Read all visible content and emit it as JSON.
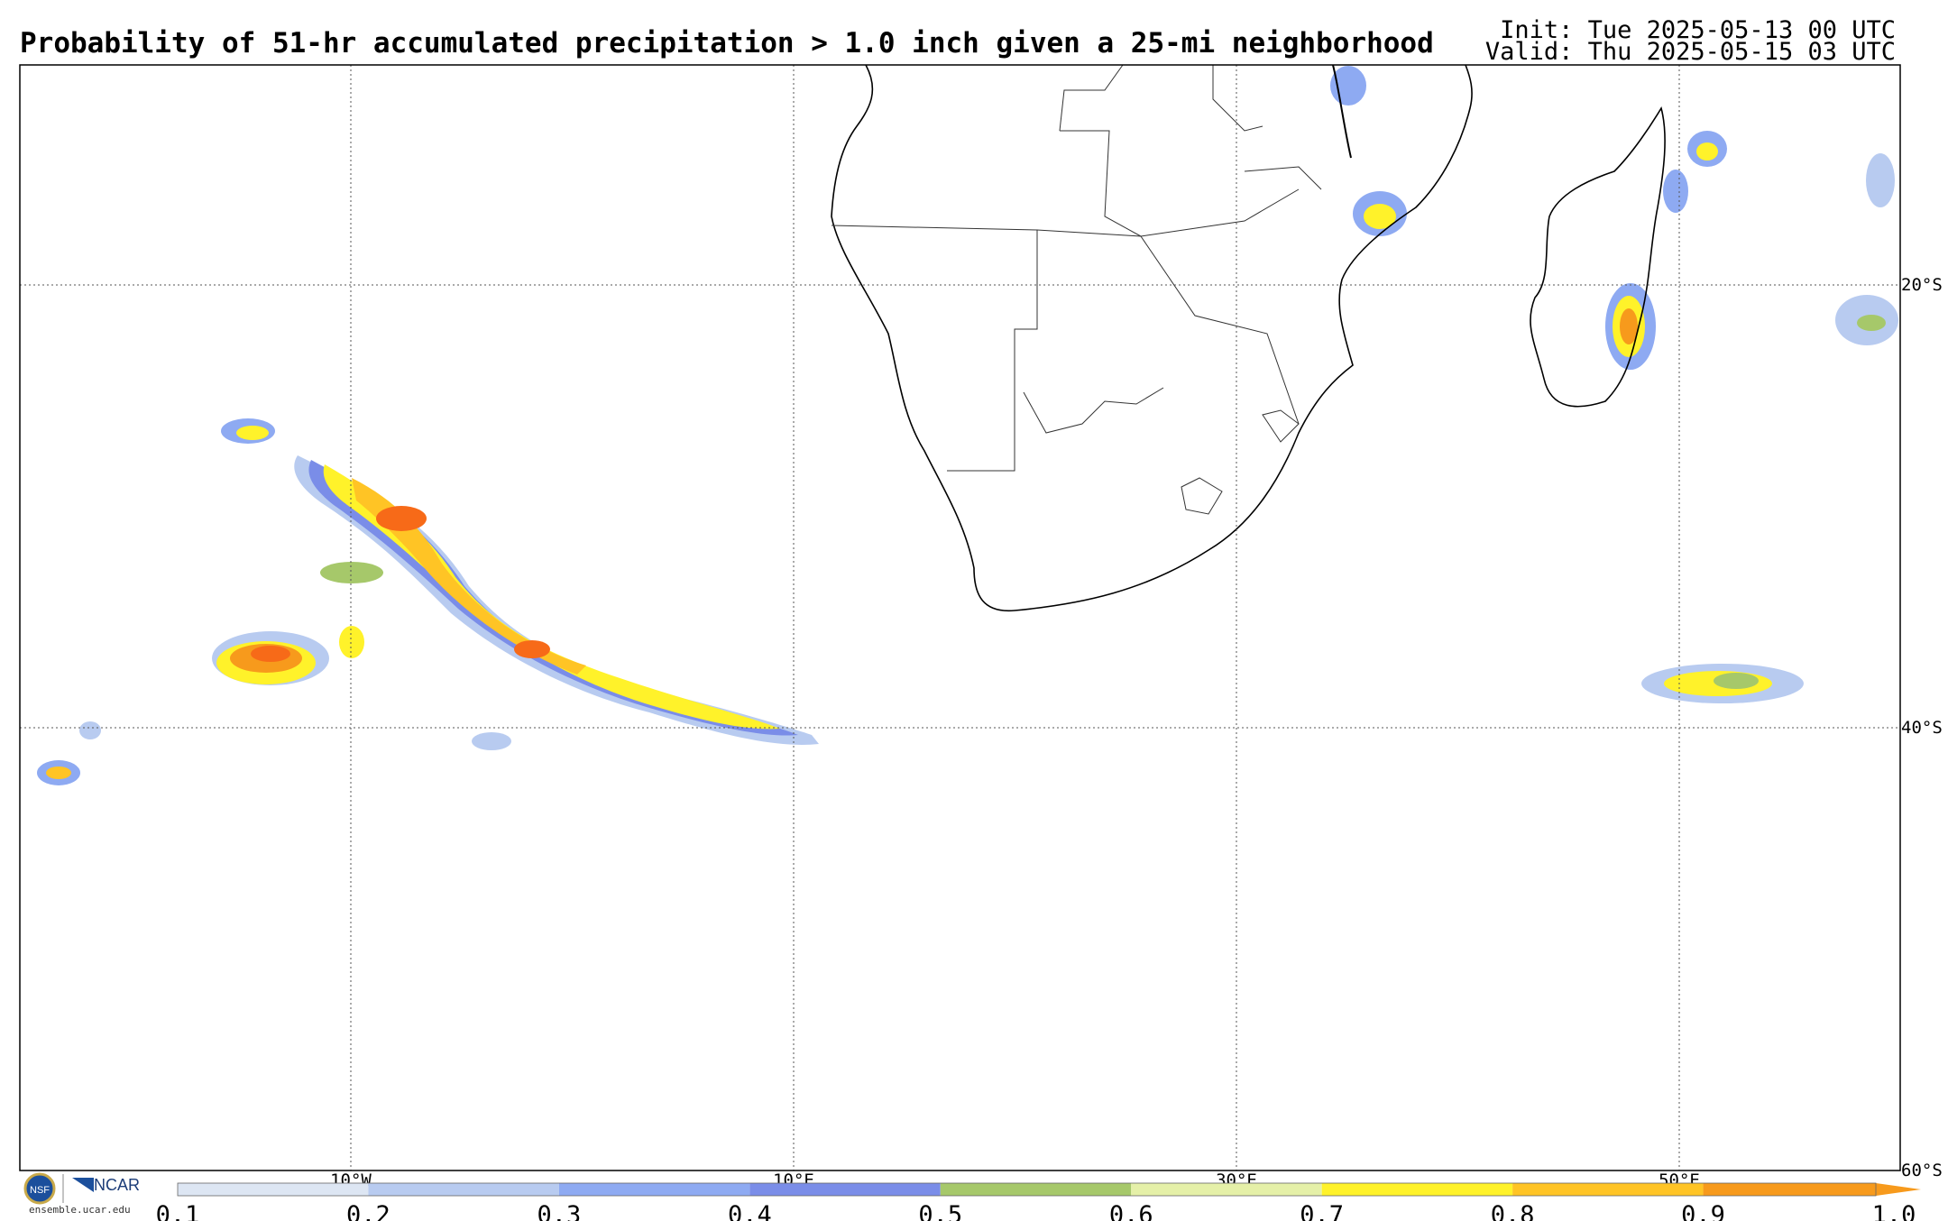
{
  "header": {
    "title": "Probability of 51-hr accumulated precipitation > 1.0 inch given a 25-mi neighborhood",
    "init": "Init: Tue 2025-05-13 00 UTC",
    "valid": "Valid: Thu 2025-05-15 03 UTC"
  },
  "map": {
    "lon_labels": [
      "10°W",
      "10°E",
      "30°E",
      "50°E"
    ],
    "lat_labels": [
      "20°S",
      "40°S",
      "60°S"
    ]
  },
  "colorbar": {
    "ticks": [
      "0.1",
      "0.2",
      "0.3",
      "0.4",
      "0.5",
      "0.6",
      "0.7",
      "0.8",
      "0.9",
      "1.0"
    ],
    "colors": [
      "#dde6f3",
      "#b8cbf0",
      "#8eaaf2",
      "#7a8de8",
      "#a6c86a",
      "#e5f0a8",
      "#fff22a",
      "#ffc425",
      "#f79a1c"
    ]
  },
  "logo": {
    "org": "NCAR",
    "badge": "NSF",
    "site": "ensemble.ucar.edu"
  }
}
